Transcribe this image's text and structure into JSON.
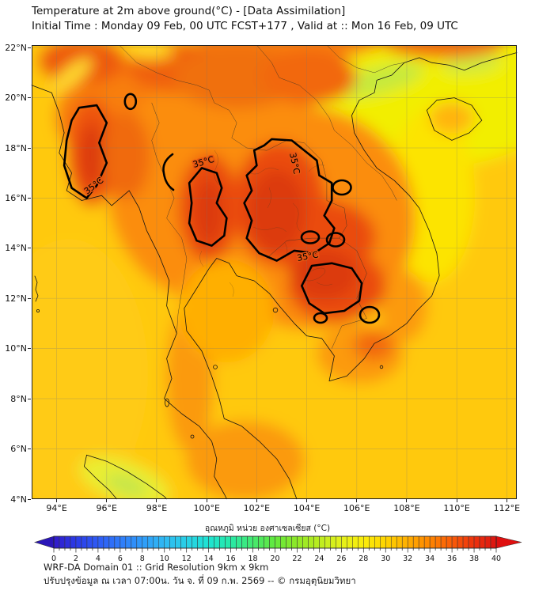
{
  "header": {
    "title": "Temperature at 2m above ground(°C) - [Data Assimilation]",
    "subtitle": "Initial Time : Monday 09 Feb, 00 UTC FCST+177 , Valid at :: Mon 16 Feb, 09 UTC"
  },
  "chart_data": {
    "type": "heatmap",
    "title": "Temperature at 2m above ground(°C) - [Data Assimilation]",
    "subtitle": "Initial Time : Monday 09 Feb, 00 UTC FCST+177 , Valid at :: Mon 16 Feb, 09 UTC",
    "x_axis": {
      "suffix": "°E",
      "ticks": [
        94,
        96,
        98,
        100,
        102,
        104,
        106,
        108,
        110,
        112
      ],
      "range": [
        93.0,
        112.4
      ]
    },
    "y_axis": {
      "suffix": "°N",
      "ticks": [
        22,
        20,
        18,
        16,
        14,
        12,
        10,
        8,
        6,
        4
      ],
      "range": [
        4.0,
        22.1
      ]
    },
    "grid": true,
    "contour_label": "35°C",
    "contour_level_c": 35,
    "field_colors": {
      "sea_yellow": "#FFC907",
      "cool_lemon": "#F2EE04",
      "cool_green": "#C6E93E",
      "land_orange": "#FB8D08",
      "hot_red": "#EA4B0E",
      "hottest_red": "#DC3A0C"
    },
    "legend": {
      "title": "อุณหภูมิ หน่วย องศาเซลเซียส (°C)",
      "min": 0,
      "max": 40,
      "label_step": 2,
      "segment_step": 0.5,
      "ticks": [
        0,
        2,
        4,
        6,
        8,
        10,
        12,
        14,
        16,
        18,
        20,
        22,
        24,
        26,
        28,
        30,
        32,
        34,
        36,
        38,
        40
      ],
      "under_color": "#2A16B8",
      "over_color": "#DF0F0F",
      "stops": [
        [
          0,
          "#3119C9"
        ],
        [
          2,
          "#2A3BE8"
        ],
        [
          4,
          "#2E5BF5"
        ],
        [
          6,
          "#2F7BFA"
        ],
        [
          8,
          "#2F9BFA"
        ],
        [
          10,
          "#2FB9F2"
        ],
        [
          12,
          "#28D0E6"
        ],
        [
          14,
          "#1FE3D2"
        ],
        [
          16,
          "#27E9A7"
        ],
        [
          18,
          "#45E96F"
        ],
        [
          20,
          "#63E93C"
        ],
        [
          22,
          "#8FE827"
        ],
        [
          24,
          "#BCEC20"
        ],
        [
          26,
          "#E4F01A"
        ],
        [
          28,
          "#FAEC0A"
        ],
        [
          30,
          "#FFD400"
        ],
        [
          32,
          "#FFAE00"
        ],
        [
          34,
          "#FF8500"
        ],
        [
          36,
          "#FA5C08"
        ],
        [
          38,
          "#ED320D"
        ],
        [
          40,
          "#DC1410"
        ]
      ]
    }
  },
  "footer": {
    "line1": "WRF-DA Domain 01 :: Grid Resolution 9km x 9km",
    "line2": "ปรับปรุงข้อมูล ณ เวลา 07:00น. วัน จ. ที่ 09 ก.พ. 2569 -- © กรมอุตุนิยมวิทยา"
  }
}
